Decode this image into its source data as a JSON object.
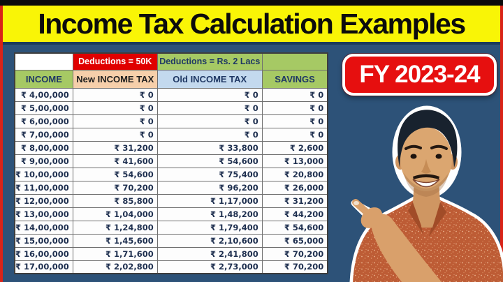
{
  "header": {
    "title": "Income Tax Calculation Examples"
  },
  "badge": {
    "label": "FY 2023-24"
  },
  "table": {
    "group_headers": {
      "blank": "",
      "new_deduction": "Deductions = 50K",
      "old_deduction": "Deductions = Rs. 2 Lacs",
      "blank_green": ""
    },
    "columns": {
      "income": "INCOME",
      "new_tax": "New INCOME TAX",
      "old_tax": "Old INCOME TAX",
      "savings": "SAVINGS"
    },
    "rows": [
      [
        "₹ 4,00,000",
        "₹ 0",
        "₹ 0",
        "₹ 0"
      ],
      [
        "₹ 5,00,000",
        "₹ 0",
        "₹ 0",
        "₹ 0"
      ],
      [
        "₹ 6,00,000",
        "₹ 0",
        "₹ 0",
        "₹ 0"
      ],
      [
        "₹ 7,00,000",
        "₹ 0",
        "₹ 0",
        "₹ 0"
      ],
      [
        "₹ 8,00,000",
        "₹ 31,200",
        "₹ 33,800",
        "₹ 2,600"
      ],
      [
        "₹ 9,00,000",
        "₹ 41,600",
        "₹ 54,600",
        "₹ 13,000"
      ],
      [
        "₹ 10,00,000",
        "₹ 54,600",
        "₹ 75,400",
        "₹ 20,800"
      ],
      [
        "₹ 11,00,000",
        "₹ 70,200",
        "₹ 96,200",
        "₹ 26,000"
      ],
      [
        "₹ 12,00,000",
        "₹ 85,800",
        "₹ 1,17,000",
        "₹ 31,200"
      ],
      [
        "₹ 13,00,000",
        "₹ 1,04,000",
        "₹ 1,48,200",
        "₹ 44,200"
      ],
      [
        "₹ 14,00,000",
        "₹ 1,24,800",
        "₹ 1,79,400",
        "₹ 54,600"
      ],
      [
        "₹ 15,00,000",
        "₹ 1,45,600",
        "₹ 2,10,600",
        "₹ 65,000"
      ],
      [
        "₹ 16,00,000",
        "₹ 1,71,600",
        "₹ 2,41,800",
        "₹ 70,200"
      ],
      [
        "₹ 17,00,000",
        "₹ 2,02,800",
        "₹ 2,73,000",
        "₹ 70,200"
      ]
    ]
  },
  "person": {
    "description": "smiling man pointing at the tax table"
  },
  "colors": {
    "title_yellow": "#f9f506",
    "border_red": "#d92318",
    "background_blue": "#2d5278",
    "header_green": "#a6c964",
    "header_peach": "#f6cfaa",
    "header_light_blue": "#c3d9ee",
    "deduction_red": "#e00000",
    "badge_red": "#e60f0f"
  }
}
